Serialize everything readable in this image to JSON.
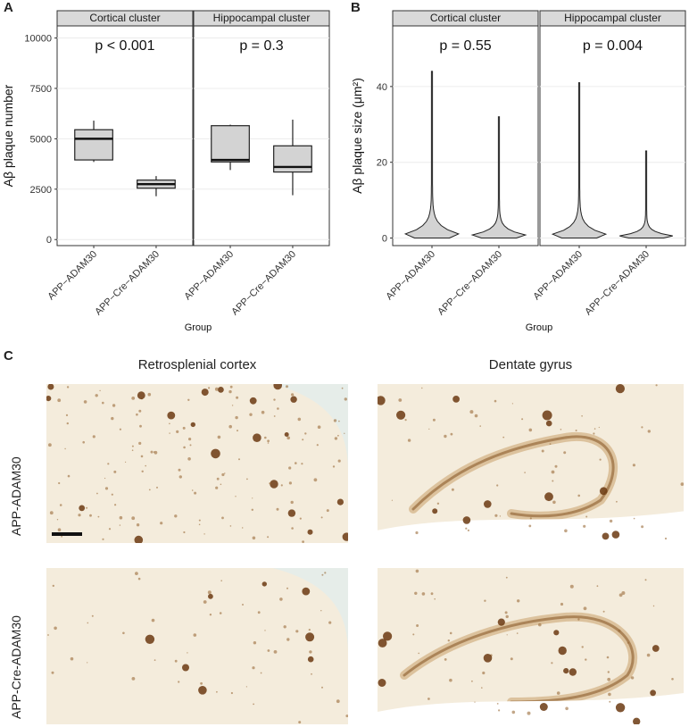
{
  "panel_labels": {
    "a": "A",
    "b": "B",
    "c": "C"
  },
  "chart_data": [
    {
      "type": "box",
      "panel": "A",
      "ylabel": "Aβ plaque number",
      "xlabel": "Group",
      "ylim": [
        -300,
        10600
      ],
      "yticks": [
        0,
        2500,
        5000,
        7500,
        10000
      ],
      "tick_labels": [
        "0",
        "2500",
        "5000",
        "7500",
        "10000"
      ],
      "facets": [
        {
          "name": "Cortical cluster",
          "pvalue": "p < 0.001",
          "categories": [
            "APP−ADAM30",
            "APP−Cre−ADAM30"
          ],
          "boxes": [
            {
              "whisker_low": 3850,
              "q1": 3950,
              "median": 5000,
              "q3": 5450,
              "whisker_high": 5900
            },
            {
              "whisker_low": 2150,
              "q1": 2550,
              "median": 2750,
              "q3": 2950,
              "whisker_high": 3150
            }
          ]
        },
        {
          "name": "Hippocampal cluster",
          "pvalue": "p = 0.3",
          "categories": [
            "APP−ADAM30",
            "APP−Cre−ADAM30"
          ],
          "boxes": [
            {
              "whisker_low": 3450,
              "q1": 3850,
              "median": 3950,
              "q3": 5650,
              "whisker_high": 5700
            },
            {
              "whisker_low": 2200,
              "q1": 3350,
              "median": 3600,
              "q3": 4650,
              "whisker_high": 5950
            }
          ]
        }
      ],
      "grid": true
    },
    {
      "type": "violin",
      "panel": "B",
      "ylabel": "Aβ plaque size (μm²)",
      "xlabel": "Group",
      "ylim": [
        -2,
        56
      ],
      "yticks": [
        0,
        20,
        40
      ],
      "tick_labels": [
        "0",
        "20",
        "40"
      ],
      "facets": [
        {
          "name": "Cortical cluster",
          "pvalue": "p = 0.55",
          "categories": [
            "APP−ADAM30",
            "APP−Cre−ADAM30"
          ],
          "violins": [
            {
              "min": 0,
              "max": 44
            },
            {
              "min": 0,
              "max": 32
            }
          ]
        },
        {
          "name": "Hippocampal cluster",
          "pvalue": "p = 0.004",
          "categories": [
            "APP−ADAM30",
            "APP−Cre−ADAM30"
          ],
          "violins": [
            {
              "min": 0,
              "max": 41
            },
            {
              "min": 0,
              "max": 23
            }
          ]
        }
      ],
      "grid": true
    }
  ],
  "micrographs": {
    "columns": [
      "Retrosplenial cortex",
      "Dentate gyrus"
    ],
    "rows": [
      "APP-ADAM30",
      "APP-Cre-ADAM30"
    ]
  },
  "colors": {
    "box_fill": "#d3d3d3",
    "strip": "#d9d9d9",
    "tissue": "#f3ead9",
    "stain": "#7a4a1c"
  }
}
